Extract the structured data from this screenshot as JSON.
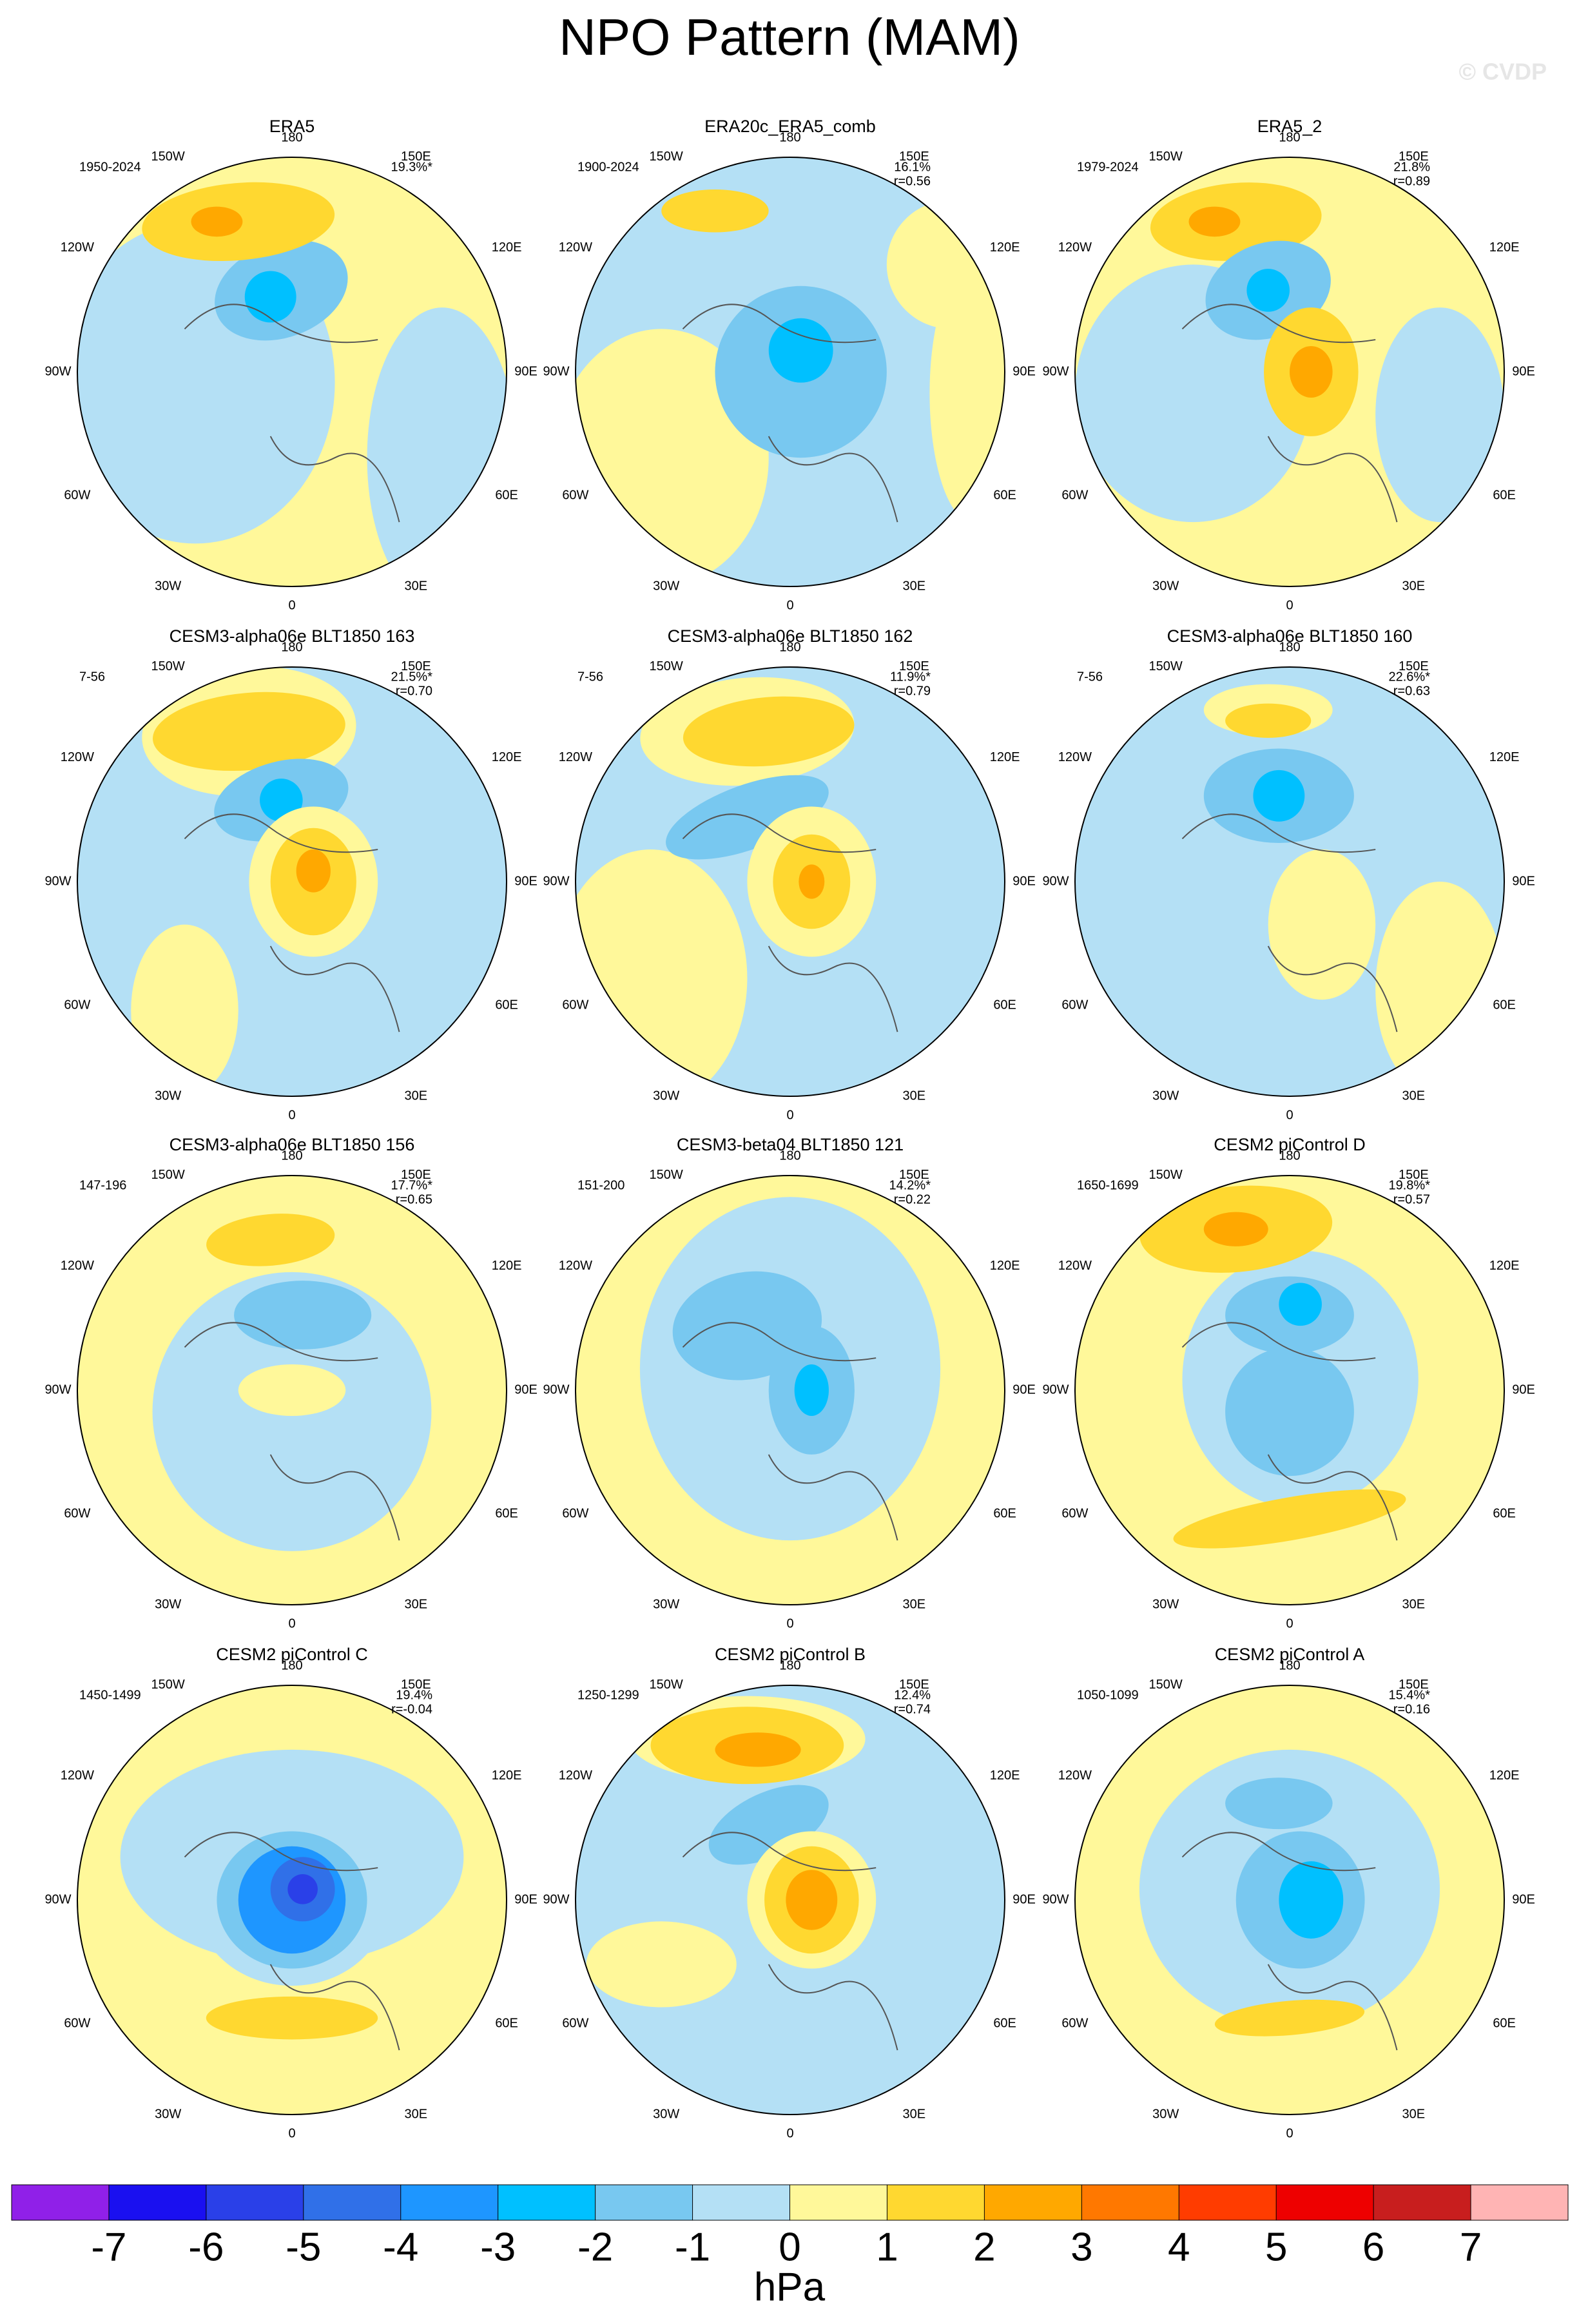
{
  "header": {
    "title": "NPO Pattern (MAM)",
    "watermark": "© CVDP"
  },
  "lon_labels": [
    "180",
    "150E",
    "120E",
    "90E",
    "60E",
    "30E",
    "0",
    "30W",
    "60W",
    "90W",
    "120W",
    "150W"
  ],
  "panels": [
    {
      "title": "ERA5",
      "years": "1950-2024",
      "pct": "19.3%*"
    },
    {
      "title": "ERA20c_ERA5_comb",
      "years": "1900-2024",
      "pct": "16.1%",
      "r": "r=0.56"
    },
    {
      "title": "ERA5_2",
      "years": "1979-2024",
      "pct": "21.8%",
      "r": "r=0.89"
    },
    {
      "title": "CESM3-alpha06e BLT1850 163",
      "years": "7-56",
      "pct": "21.5%*",
      "r": "r=0.70"
    },
    {
      "title": "CESM3-alpha06e BLT1850 162",
      "years": "7-56",
      "pct": "11.9%*",
      "r": "r=0.79"
    },
    {
      "title": "CESM3-alpha06e BLT1850 160",
      "years": "7-56",
      "pct": "22.6%*",
      "r": "r=0.63"
    },
    {
      "title": "CESM3-alpha06e BLT1850 156",
      "years": "147-196",
      "pct": "17.7%*",
      "r": "r=0.65"
    },
    {
      "title": "CESM3-beta04 BLT1850 121",
      "years": "151-200",
      "pct": "14.2%*",
      "r": "r=0.22"
    },
    {
      "title": "CESM2 piControl D",
      "years": "1650-1699",
      "pct": "19.8%*",
      "r": "r=0.57"
    },
    {
      "title": "CESM2 piControl C",
      "years": "1450-1499",
      "pct": "19.4%",
      "r": "r=-0.04"
    },
    {
      "title": "CESM2 piControl B",
      "years": "1250-1299",
      "pct": "12.4%",
      "r": "r=0.74"
    },
    {
      "title": "CESM2 piControl A",
      "years": "1050-1099",
      "pct": "15.4%*",
      "r": "r=0.16"
    }
  ],
  "colorbar": {
    "colors": [
      "#9020e8",
      "#1a10f0",
      "#2a40e8",
      "#3070e8",
      "#1e96ff",
      "#00c0ff",
      "#78c8f0",
      "#b4e0f5",
      "#fff89a",
      "#ffd830",
      "#ffa800",
      "#ff7800",
      "#ff3c00",
      "#ee0000",
      "#c81e1e",
      "#ffb4b4"
    ],
    "labels": [
      -7,
      -6,
      -5,
      -4,
      -3,
      -2,
      -1,
      0,
      1,
      2,
      3,
      4,
      5,
      6,
      7
    ],
    "units": "hPa"
  }
}
